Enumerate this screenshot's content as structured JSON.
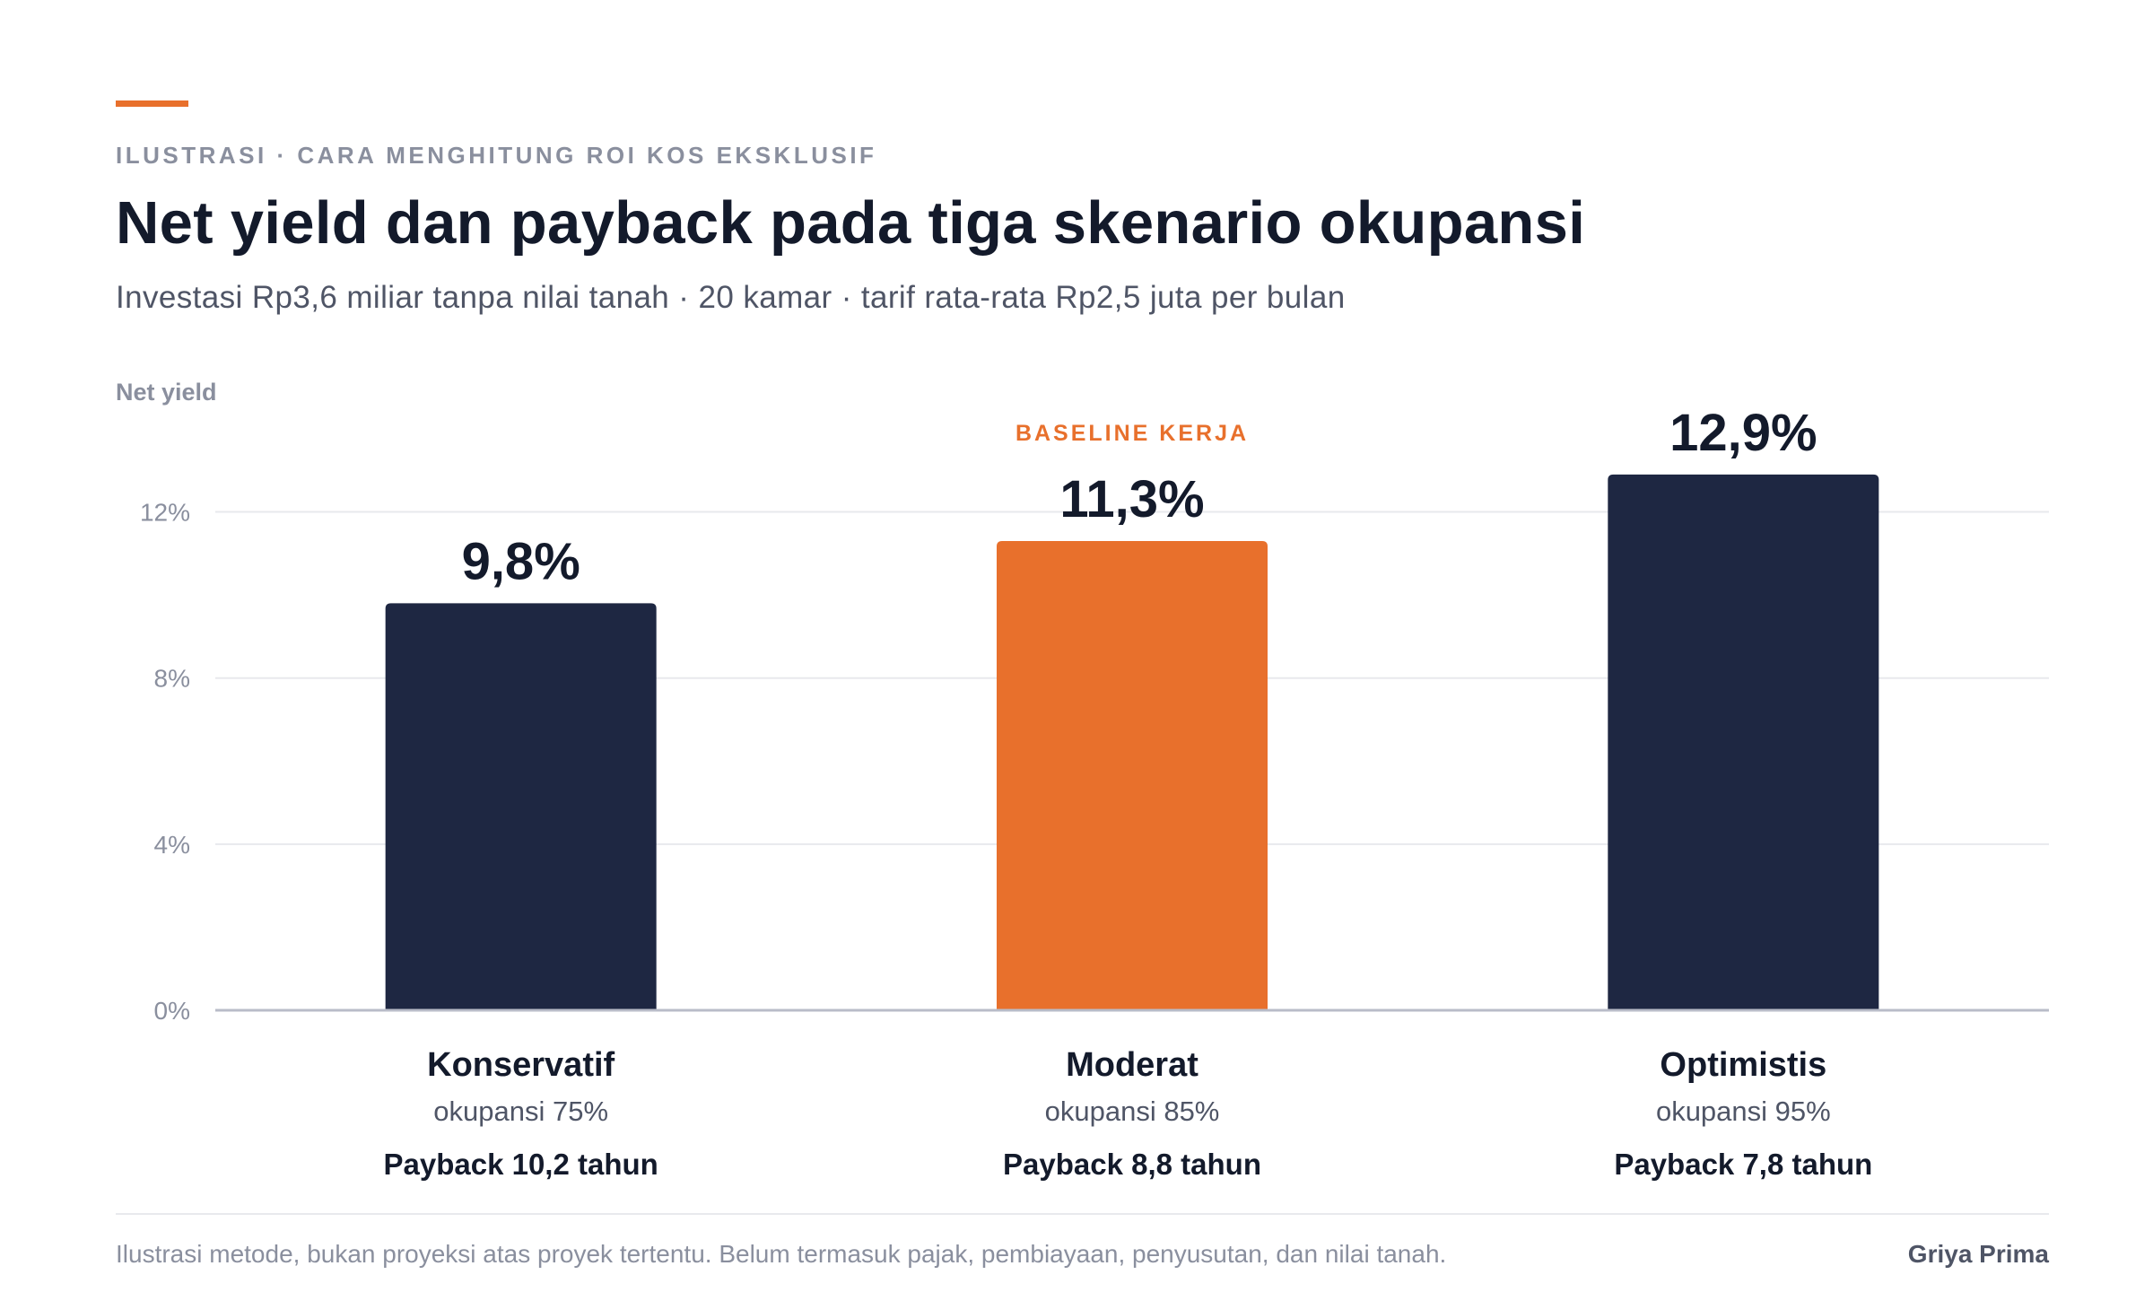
{
  "eyebrow": "ILUSTRASI · CARA MENGHITUNG ROI KOS EKSKLUSIF",
  "title": "Net yield dan payback pada tiga skenario okupansi",
  "subtitle": "Investasi Rp3,6 miliar tanpa nilai tanah · 20 kamar · tarif rata-rata Rp2,5 juta per bulan",
  "footnote": "Ilustrasi metode, bukan proyeksi atas proyek tertentu. Belum termasuk pajak, pembiayaan, penyusutan, dan nilai tanah.",
  "brand": "Griya Prima",
  "colors": {
    "accent": "#e8702c",
    "bar": "#1e2742",
    "text": "#131a2b",
    "muted": "#8a8f9e",
    "grid": "#e8e9ed"
  },
  "chart_data": {
    "type": "bar",
    "ylabel": "Net yield",
    "ylim": [
      0,
      13.2
    ],
    "yticks": [
      0,
      4,
      8,
      12
    ],
    "ytick_labels": [
      "0%",
      "4%",
      "8%",
      "12%"
    ],
    "grid": true,
    "categories": [
      "Konservatif",
      "Moderat",
      "Optimistis"
    ],
    "values": [
      9.8,
      11.3,
      12.9
    ],
    "value_labels": [
      "9,8%",
      "11,3%",
      "12,9%"
    ],
    "occupancy": [
      "okupansi 75%",
      "okupansi 85%",
      "okupansi 95%"
    ],
    "payback": [
      "Payback 10,2 tahun",
      "Payback 8,8 tahun",
      "Payback 7,8 tahun"
    ],
    "highlight_index": 1,
    "highlight_label": "BASELINE KERJA"
  }
}
